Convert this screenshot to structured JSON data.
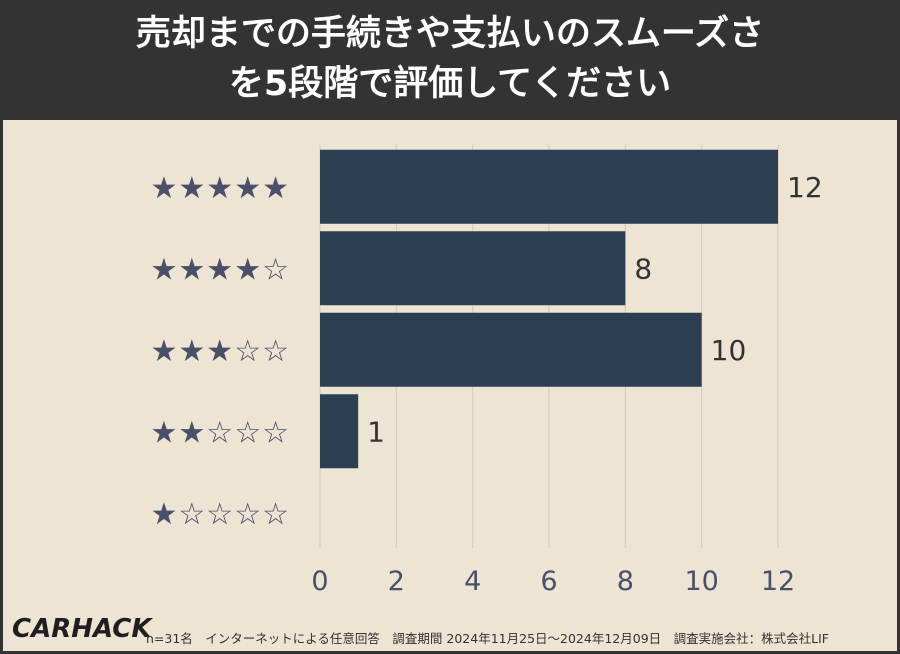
{
  "title": {
    "line1": "売却までの手続きや支払いのスムーズさ",
    "line2": "を5段階で評価してください"
  },
  "colors": {
    "header_bg": "#333333",
    "background": "#ede4d3",
    "bar": "#2b3e52",
    "grid": "#d6ccbb",
    "axis_text": "#4a4f6a",
    "value_text": "#333333"
  },
  "chart_data": {
    "type": "bar",
    "orientation": "horizontal",
    "categories": [
      "★★★★★",
      "★★★★☆",
      "★★★☆☆",
      "★★☆☆☆",
      "★☆☆☆☆"
    ],
    "values": [
      12,
      8,
      10,
      1,
      0
    ],
    "value_labels": [
      "12",
      "8",
      "10",
      "1",
      ""
    ],
    "xlim": [
      0,
      12
    ],
    "xticks": [
      0,
      2,
      4,
      6,
      8,
      10,
      12
    ],
    "xtick_labels": [
      "0",
      "2",
      "4",
      "6",
      "8",
      "10",
      "12"
    ],
    "grid": true
  },
  "footer": {
    "logo": "CARHACK",
    "note": "n=31名　インターネットによる任意回答　調査期間 2024年11月25日〜2024年12月09日　調査実施会社：株式会社LIF"
  }
}
